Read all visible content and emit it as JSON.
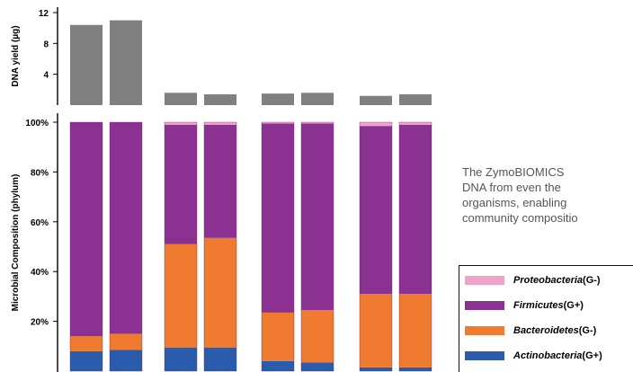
{
  "chart_data": [
    {
      "type": "bar",
      "ylabel": "DNA yield (µg)",
      "ylim": [
        0,
        12
      ],
      "yticks": [
        "12",
        "8",
        "4"
      ],
      "ytick_values": [
        12,
        8,
        4
      ],
      "values": [
        10.4,
        11.0,
        1.6,
        1.4,
        1.5,
        1.6,
        1.2,
        1.4
      ],
      "color": "#808080"
    },
    {
      "type": "bar",
      "stacked": true,
      "ylabel": "Microbial Composition (phylum)",
      "ylim": [
        0,
        100
      ],
      "yticks": [
        "100%",
        "80%",
        "60%",
        "40%",
        "20%"
      ],
      "ytick_values": [
        100,
        80,
        60,
        40,
        20
      ],
      "series": [
        {
          "name": "Actinobacteria",
          "values": [
            8,
            8.5,
            9.5,
            9.5,
            4,
            3.5,
            1.5,
            1.5
          ]
        },
        {
          "name": "Bacteroidetes",
          "values": [
            6,
            6.5,
            41.5,
            44,
            19.5,
            21,
            29.5,
            29.5
          ]
        },
        {
          "name": "Firmicutes",
          "values": [
            86,
            85,
            48,
            45.5,
            76,
            75,
            67.5,
            68
          ]
        },
        {
          "name": "Proteobacteria",
          "values": [
            0,
            0,
            1,
            1,
            0.5,
            0.5,
            1.5,
            1
          ]
        }
      ]
    }
  ],
  "colors": {
    "Actinobacteria": "#2a5cab",
    "Bacteroidetes": "#ef7a30",
    "Firmicutes": "#8b3191",
    "Proteobacteria": "#eea3cb",
    "yield_bar": "#808080"
  },
  "caption": {
    "line1": "The ZymoBIOMICS",
    "line2": "DNA from even the",
    "line3": "organisms, enabling",
    "line4": "community compositio"
  },
  "legend": [
    {
      "name": "Proteobacteria",
      "suffix": " (G-)",
      "color": "#eea3cb"
    },
    {
      "name": "Firmicutes",
      "suffix": " (G+)",
      "color": "#8b3191"
    },
    {
      "name": "Bacteroidetes",
      "suffix": "(G-)",
      "color": "#ef7a30"
    },
    {
      "name": "Actinobacteria",
      "suffix": " (G+)",
      "color": "#2a5cab"
    }
  ]
}
